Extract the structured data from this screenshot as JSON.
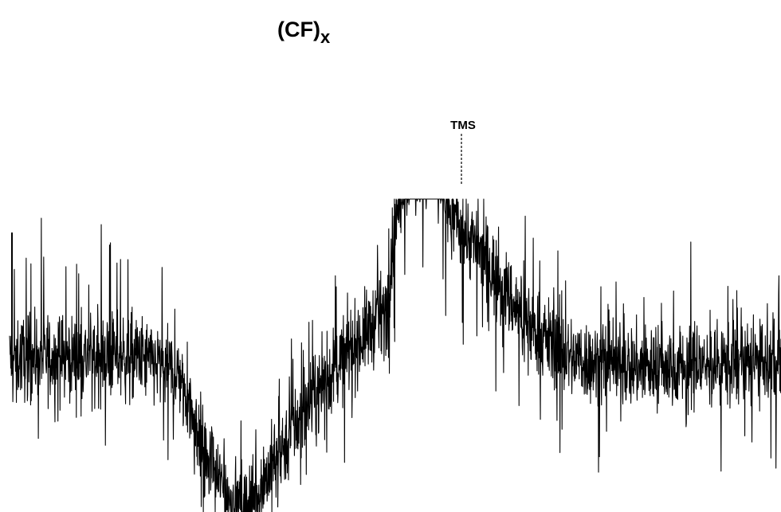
{
  "title": {
    "main": "(CF)",
    "subscript": "x"
  },
  "reference_marker": {
    "label": "TMS"
  },
  "chart_data": {
    "type": "line",
    "title": "(CF)x",
    "xlabel": "",
    "ylabel": "",
    "grid": false,
    "legend": "none",
    "axes_visible": false,
    "color": "#000000",
    "annotations": [
      {
        "text": "TMS",
        "x": 0.0
      }
    ],
    "x_domain": [
      -5.0,
      4.0
    ],
    "y_domain": [
      -1.0,
      1.6
    ],
    "series": [
      {
        "profile_points": {
          "x": [
            -5.0,
            -4.5,
            -4.0,
            -3.5,
            -3.0,
            -2.7,
            -2.4,
            -2.2,
            -1.9,
            -1.5,
            -1.1,
            -0.6,
            -0.5,
            -0.3,
            0.0,
            0.1,
            0.5,
            1.0,
            1.5,
            2.0,
            2.5,
            3.0,
            3.5,
            4.0
          ],
          "y": [
            0.0,
            0.0,
            0.0,
            0.0,
            -0.1,
            -0.55,
            -0.78,
            -0.8,
            -0.55,
            -0.25,
            0.0,
            0.25,
            0.75,
            1.05,
            1.05,
            0.8,
            0.55,
            0.2,
            0.0,
            -0.05,
            -0.05,
            -0.05,
            -0.03,
            -0.05
          ]
        },
        "noise_amplitude": 0.2
      }
    ]
  }
}
